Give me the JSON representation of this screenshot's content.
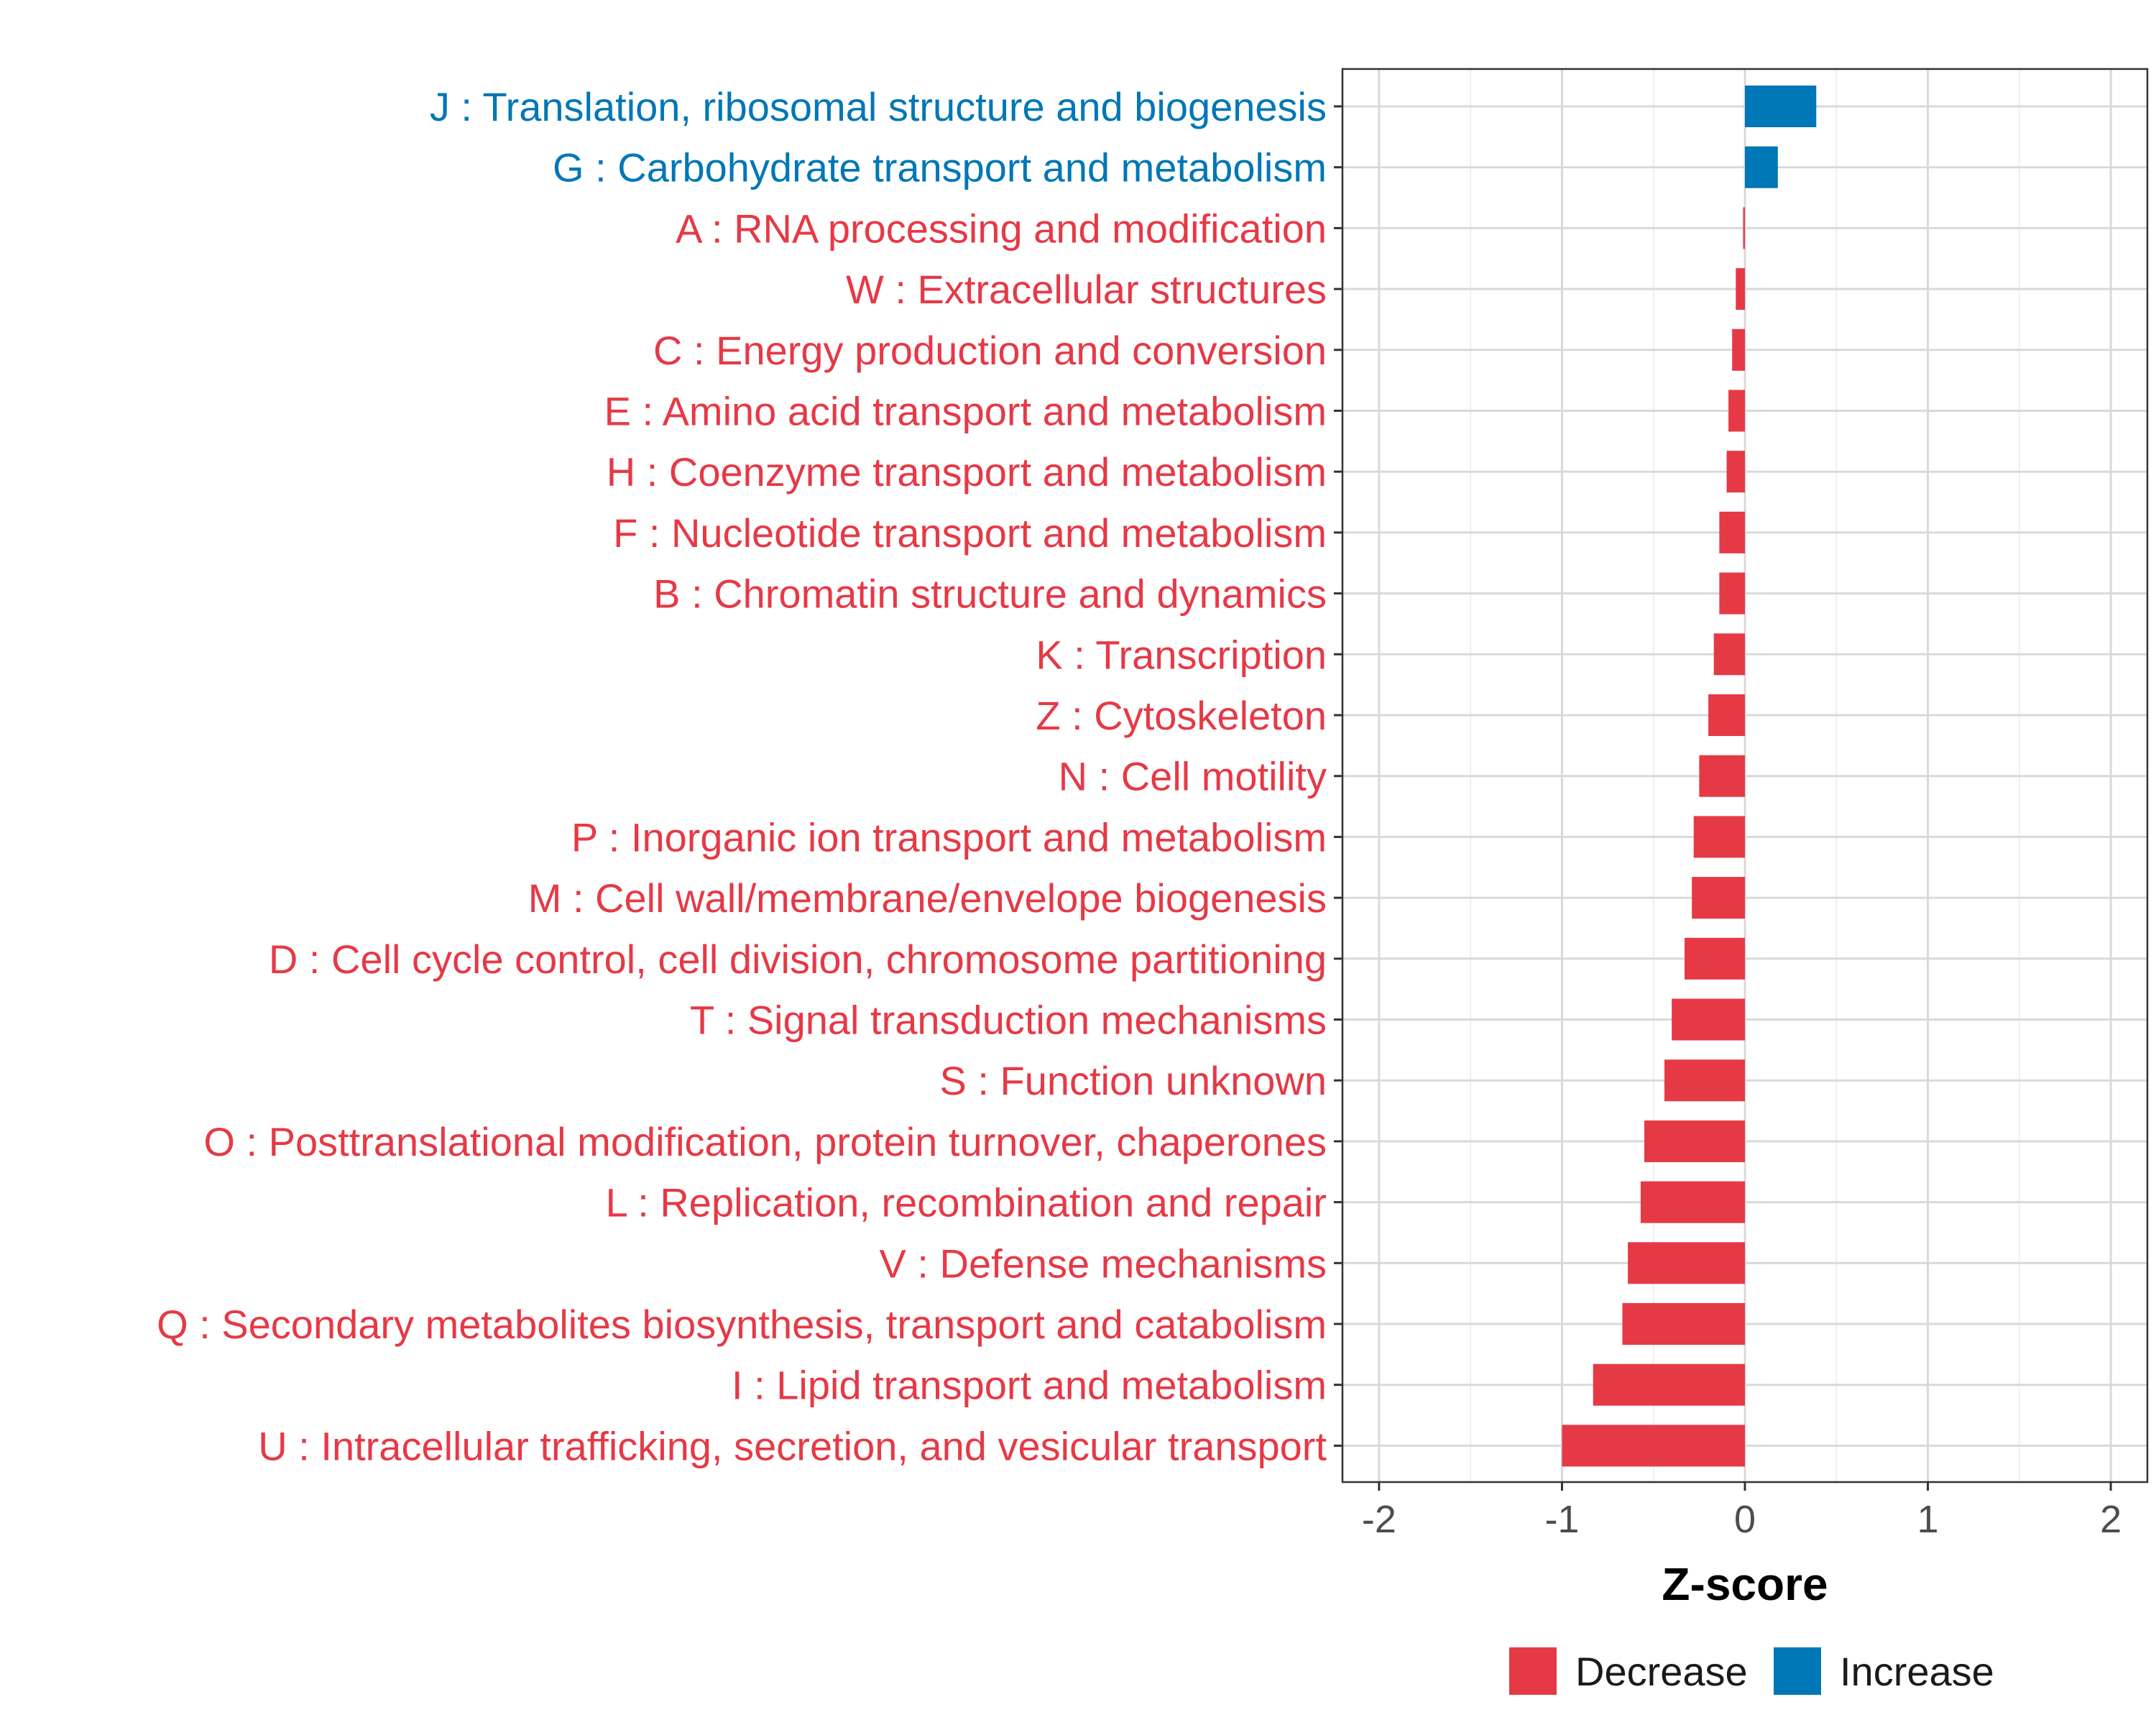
{
  "chart_data": {
    "type": "bar",
    "orientation": "horizontal",
    "title": "",
    "xlabel": "Z-score",
    "ylabel": "",
    "xlim": [
      -2.2,
      2.2
    ],
    "x_ticks": [
      -2,
      -1,
      0,
      1,
      2
    ],
    "x_tick_labels": [
      "-2",
      "-1",
      "0",
      "1",
      "2"
    ],
    "grid": true,
    "legend_position": "bottom",
    "legend": [
      {
        "name": "Decrease",
        "color": "#E63946"
      },
      {
        "name": "Increase",
        "color": "#0077B6"
      }
    ],
    "categories": [
      "J : Translation, ribosomal structure and biogenesis",
      "G : Carbohydrate transport and metabolism",
      "A : RNA processing and modification",
      "W : Extracellular structures",
      "C : Energy production and conversion",
      "E : Amino acid transport and metabolism",
      "H : Coenzyme transport and metabolism",
      "F : Nucleotide transport and metabolism",
      "B : Chromatin structure and dynamics",
      "K : Transcription",
      "Z : Cytoskeleton",
      "N : Cell motility",
      "P : Inorganic ion transport and metabolism",
      "M : Cell wall/membrane/envelope biogenesis",
      "D : Cell cycle control, cell division, chromosome partitioning",
      "T : Signal transduction mechanisms",
      "S : Function unknown",
      "O : Posttranslational modification, protein turnover, chaperones",
      "L : Replication, recombination and repair",
      "V : Defense mechanisms",
      "Q : Secondary metabolites biosynthesis, transport and catabolism",
      "I : Lipid transport and metabolism",
      "U : Intracellular trafficking, secretion, and vesicular transport"
    ],
    "values": [
      0.39,
      0.18,
      -0.01,
      -0.05,
      -0.07,
      -0.09,
      -0.1,
      -0.14,
      -0.14,
      -0.17,
      -0.2,
      -0.25,
      -0.28,
      -0.29,
      -0.33,
      -0.4,
      -0.44,
      -0.55,
      -0.57,
      -0.64,
      -0.67,
      -0.83,
      -1.0
    ],
    "groups": [
      "Increase",
      "Increase",
      "Decrease",
      "Decrease",
      "Decrease",
      "Decrease",
      "Decrease",
      "Decrease",
      "Decrease",
      "Decrease",
      "Decrease",
      "Decrease",
      "Decrease",
      "Decrease",
      "Decrease",
      "Decrease",
      "Decrease",
      "Decrease",
      "Decrease",
      "Decrease",
      "Decrease",
      "Decrease",
      "Decrease"
    ]
  }
}
